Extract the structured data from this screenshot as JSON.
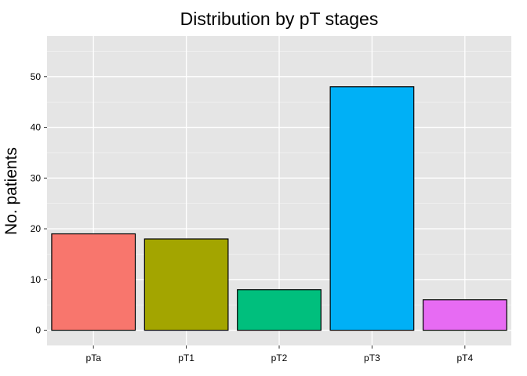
{
  "chart_data": {
    "type": "bar",
    "title": "Distribution by pT stages",
    "xlabel": "",
    "ylabel": "No. patients",
    "categories": [
      "pTa",
      "pT1",
      "pT2",
      "pT3",
      "pT4"
    ],
    "values": [
      19,
      18,
      8,
      48,
      6
    ],
    "colors": [
      "#F8766D",
      "#A3A500",
      "#00BF7D",
      "#00B0F6",
      "#E76BF3"
    ],
    "ylim": [
      -3,
      58
    ],
    "yticks": [
      0,
      10,
      20,
      30,
      40,
      50
    ],
    "ytick_labels": [
      "0",
      "10",
      "20",
      "30",
      "40",
      "50"
    ],
    "grid": true,
    "panel_background": "#E5E5E5",
    "grid_color": "#FFFFFF",
    "bar_outline": "#000000",
    "legend": "none"
  }
}
